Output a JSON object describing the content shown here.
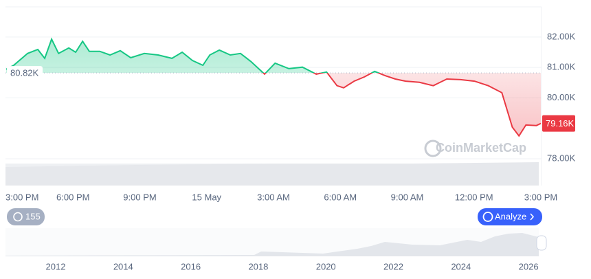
{
  "chart_data": {
    "type": "line",
    "watermark": "CoinMarketCap",
    "x": [
      0,
      0.34,
      0.96,
      1.42,
      1.73,
      2.04,
      2.35,
      2.81,
      3.12,
      3.43,
      3.73,
      4.2,
      4.66,
      5.12,
      5.59,
      6.2,
      6.82,
      7.44,
      7.9,
      8.36,
      8.83,
      9.14,
      9.57,
      10.06,
      10.52,
      10.99,
      11.6,
      12.07,
      12.69,
      13.3,
      13.92,
      14.38,
      14.85,
      15.15,
      15.62,
      16.08,
      16.54,
      17.01,
      17.47,
      17.93,
      18.55,
      19.17,
      19.78,
      20.4,
      21.02,
      21.64,
      22.25,
      22.72,
      23.02,
      23.33,
      23.8,
      24
    ],
    "values": [
      80940,
      81070,
      81460,
      81590,
      81300,
      81930,
      81460,
      81640,
      81500,
      81860,
      81530,
      81530,
      81410,
      81550,
      81320,
      81460,
      81410,
      81300,
      81500,
      81230,
      81070,
      81410,
      81570,
      81410,
      81460,
      81190,
      80780,
      81140,
      80960,
      81010,
      80780,
      80850,
      80400,
      80330,
      80550,
      80690,
      80870,
      80730,
      80620,
      80550,
      80510,
      80400,
      80620,
      80600,
      80550,
      80400,
      80170,
      79040,
      78750,
      79110,
      79090,
      79160
    ],
    "up_color": "#16c784",
    "down_color": "#ea3943",
    "baseline": {
      "value": 80820,
      "label": "80.82K"
    },
    "current": {
      "value": 79160,
      "label": "79.16K"
    },
    "xlim": [
      0,
      24
    ],
    "ylim": [
      77120,
      82990
    ],
    "xticks": [
      {
        "value": 0,
        "label": "3:00 PM"
      },
      {
        "value": 3,
        "label": "6:00 PM"
      },
      {
        "value": 6,
        "label": "9:00 PM"
      },
      {
        "value": 9,
        "label": "15 May"
      },
      {
        "value": 12,
        "label": "3:00 AM"
      },
      {
        "value": 15,
        "label": "6:00 AM"
      },
      {
        "value": 18,
        "label": "9:00 AM"
      },
      {
        "value": 21,
        "label": "12:00 PM"
      },
      {
        "value": 24,
        "label": "3:00 PM"
      }
    ],
    "yticks": [
      {
        "value": 78000,
        "label": "78.00K"
      },
      {
        "value": 80000,
        "label": "80.00K"
      },
      {
        "value": 81000,
        "label": "81.00K"
      },
      {
        "value": 82000,
        "label": "82.00K"
      }
    ],
    "grid": true
  },
  "controls": {
    "history_badge": "155",
    "analyze_button": "Analyze"
  },
  "overview": {
    "years": [
      "2012",
      "2014",
      "2016",
      "2018",
      "2020",
      "2022",
      "2024",
      "2026"
    ]
  }
}
